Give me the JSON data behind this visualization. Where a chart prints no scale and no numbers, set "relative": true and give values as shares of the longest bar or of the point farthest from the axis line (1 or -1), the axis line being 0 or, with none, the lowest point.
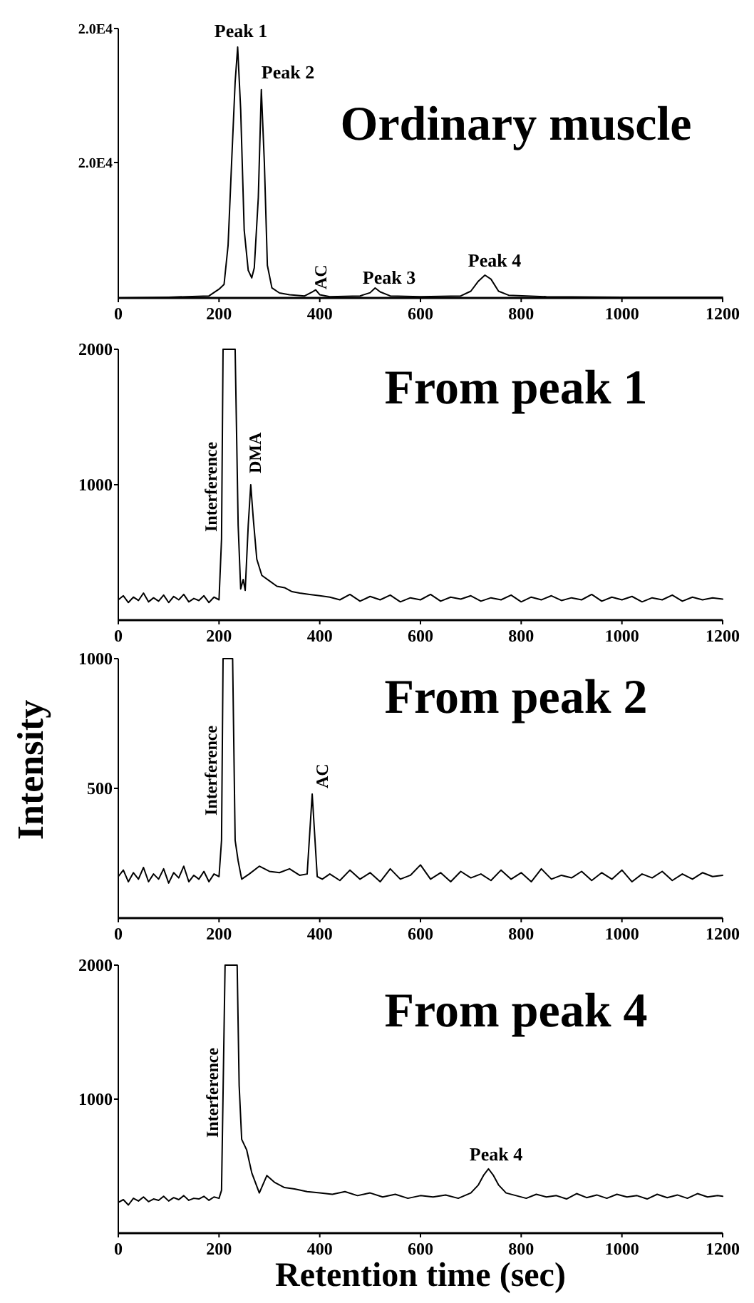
{
  "chart_data": [
    {
      "type": "line",
      "title": "Ordinary muscle",
      "relative": true,
      "xlim": [
        0,
        1200
      ],
      "xticks": [
        0,
        200,
        400,
        600,
        800,
        1000,
        1200
      ],
      "x": [
        0,
        100,
        180,
        200,
        210,
        218,
        225,
        232,
        237,
        243,
        250,
        258,
        265,
        270,
        278,
        284,
        290,
        296,
        305,
        320,
        340,
        370,
        385,
        392,
        400,
        420,
        480,
        500,
        510,
        520,
        540,
        600,
        680,
        700,
        715,
        728,
        740,
        755,
        775,
        850,
        1000,
        1200
      ],
      "series": [
        {
          "color": "#000000",
          "values": [
            0,
            0.003,
            0.008,
            0.035,
            0.054,
            0.21,
            0.54,
            0.86,
            1,
            0.75,
            0.27,
            0.11,
            0.08,
            0.12,
            0.4,
            0.83,
            0.54,
            0.13,
            0.04,
            0.02,
            0.013,
            0.008,
            0.024,
            0.032,
            0.013,
            0.005,
            0.008,
            0.021,
            0.04,
            0.024,
            0.008,
            0.005,
            0.008,
            0.027,
            0.067,
            0.091,
            0.075,
            0.027,
            0.011,
            0.005,
            0.003,
            0.003
          ]
        }
      ],
      "annotations": [
        "Peak 1",
        "Peak 2",
        "AC",
        "Peak 3",
        "Peak 4",
        "2.0E4",
        "2.0E4"
      ]
    },
    {
      "type": "line",
      "title": "From peak 1",
      "ylabel": "Intensity",
      "xlim": [
        0,
        1200
      ],
      "xticks": [
        0,
        200,
        400,
        600,
        800,
        1000,
        1200
      ],
      "ylim": [
        0,
        2000
      ],
      "yticks": [
        1000,
        2000
      ],
      "x": [
        0,
        10,
        20,
        30,
        40,
        50,
        60,
        70,
        80,
        90,
        100,
        110,
        120,
        130,
        140,
        150,
        160,
        170,
        180,
        190,
        200,
        205,
        208,
        232,
        238,
        243,
        248,
        252,
        258,
        263,
        268,
        275,
        285,
        300,
        315,
        330,
        345,
        360,
        380,
        400,
        420,
        440,
        460,
        480,
        500,
        520,
        540,
        560,
        580,
        600,
        620,
        640,
        660,
        680,
        700,
        720,
        740,
        760,
        780,
        800,
        820,
        840,
        860,
        880,
        900,
        920,
        940,
        960,
        980,
        1000,
        1020,
        1040,
        1060,
        1080,
        1100,
        1120,
        1140,
        1160,
        1180,
        1200
      ],
      "series": [
        {
          "color": "#000000",
          "values": [
            150,
            180,
            130,
            170,
            145,
            200,
            135,
            165,
            140,
            185,
            130,
            175,
            150,
            190,
            135,
            160,
            145,
            180,
            130,
            170,
            150,
            600,
            2000,
            2000,
            700,
            230,
            300,
            220,
            700,
            1000,
            750,
            450,
            330,
            290,
            250,
            240,
            210,
            200,
            190,
            180,
            170,
            150,
            190,
            140,
            175,
            150,
            185,
            135,
            165,
            150,
            190,
            140,
            170,
            155,
            180,
            140,
            165,
            150,
            185,
            135,
            170,
            150,
            180,
            145,
            165,
            150,
            190,
            140,
            170,
            150,
            175,
            135,
            165,
            150,
            185,
            140,
            170,
            150,
            165,
            155
          ]
        }
      ],
      "annotations": [
        "Interference",
        "DMA"
      ]
    },
    {
      "type": "line",
      "title": "From peak 2",
      "xlim": [
        0,
        1200
      ],
      "xticks": [
        0,
        200,
        400,
        600,
        800,
        1000,
        1200
      ],
      "ylim": [
        0,
        1000
      ],
      "yticks": [
        500,
        1000
      ],
      "x": [
        0,
        10,
        20,
        30,
        40,
        50,
        60,
        70,
        80,
        90,
        100,
        110,
        120,
        130,
        140,
        150,
        160,
        170,
        180,
        190,
        200,
        205,
        208,
        227,
        232,
        238,
        245,
        260,
        280,
        300,
        320,
        340,
        360,
        375,
        385,
        395,
        405,
        420,
        440,
        460,
        480,
        500,
        520,
        540,
        560,
        580,
        600,
        620,
        640,
        660,
        680,
        700,
        720,
        740,
        760,
        780,
        800,
        820,
        840,
        860,
        880,
        900,
        920,
        940,
        960,
        980,
        1000,
        1020,
        1040,
        1060,
        1080,
        1100,
        1120,
        1140,
        1160,
        1180,
        1200
      ],
      "series": [
        {
          "color": "#000000",
          "values": [
            160,
            185,
            140,
            175,
            150,
            195,
            140,
            170,
            150,
            190,
            135,
            175,
            155,
            200,
            140,
            165,
            150,
            180,
            140,
            170,
            160,
            300,
            1000,
            1000,
            300,
            220,
            150,
            170,
            200,
            180,
            175,
            190,
            165,
            170,
            478,
            160,
            150,
            170,
            145,
            185,
            150,
            175,
            140,
            190,
            150,
            165,
            205,
            150,
            175,
            140,
            180,
            155,
            170,
            145,
            185,
            150,
            175,
            140,
            190,
            150,
            165,
            155,
            180,
            145,
            175,
            150,
            185,
            140,
            170,
            155,
            180,
            145,
            170,
            150,
            175,
            160,
            165
          ]
        }
      ],
      "annotations": [
        "Interference",
        "AC"
      ]
    },
    {
      "type": "line",
      "title": "From peak 4",
      "xlabel": "Retention time (sec)",
      "xlim": [
        0,
        1200
      ],
      "xticks": [
        0,
        200,
        400,
        600,
        800,
        1000,
        1200
      ],
      "ylim": [
        0,
        2000
      ],
      "yticks": [
        1000,
        2000
      ],
      "x": [
        0,
        10,
        20,
        30,
        40,
        50,
        60,
        70,
        80,
        90,
        100,
        110,
        120,
        130,
        140,
        150,
        160,
        170,
        180,
        190,
        200,
        205,
        212,
        236,
        240,
        245,
        255,
        265,
        280,
        295,
        310,
        330,
        350,
        375,
        400,
        425,
        450,
        475,
        500,
        525,
        550,
        575,
        600,
        625,
        650,
        675,
        700,
        715,
        725,
        735,
        745,
        755,
        770,
        790,
        810,
        830,
        850,
        870,
        890,
        910,
        930,
        950,
        970,
        990,
        1010,
        1030,
        1050,
        1070,
        1090,
        1110,
        1130,
        1150,
        1170,
        1190,
        1200
      ],
      "series": [
        {
          "color": "#000000",
          "values": [
            230,
            250,
            210,
            260,
            240,
            270,
            235,
            255,
            245,
            275,
            240,
            265,
            250,
            280,
            245,
            260,
            255,
            275,
            245,
            270,
            260,
            320,
            2000,
            2000,
            1100,
            700,
            620,
            450,
            300,
            430,
            380,
            340,
            330,
            310,
            300,
            290,
            310,
            280,
            300,
            270,
            290,
            260,
            280,
            270,
            285,
            260,
            300,
            360,
            430,
            480,
            430,
            360,
            300,
            280,
            260,
            290,
            270,
            280,
            255,
            295,
            265,
            285,
            260,
            290,
            270,
            280,
            255,
            290,
            265,
            285,
            260,
            295,
            270,
            280,
            275
          ]
        }
      ],
      "annotations": [
        "Interference",
        "Peak 4"
      ]
    }
  ]
}
